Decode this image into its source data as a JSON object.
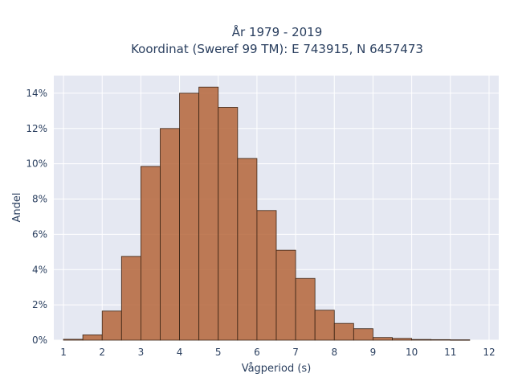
{
  "chart_data": {
    "type": "bar",
    "title_lines": [
      "År 1979 - 2019",
      "Koordinat (Sweref 99 TM): E 743915, N 6457473"
    ],
    "xlabel": "Vågperiod (s)",
    "ylabel": "Andel",
    "bin_width": 0.5,
    "x": [
      1.0,
      1.5,
      2.0,
      2.5,
      3.0,
      3.5,
      4.0,
      4.5,
      5.0,
      5.5,
      6.0,
      6.5,
      7.0,
      7.5,
      8.0,
      8.5,
      9.0,
      9.5,
      10.0,
      10.5,
      11.0
    ],
    "values": [
      0.05,
      0.3,
      1.65,
      4.75,
      9.85,
      12.0,
      14.0,
      14.35,
      13.2,
      10.3,
      7.35,
      5.1,
      3.5,
      1.7,
      0.95,
      0.65,
      0.15,
      0.1,
      0.04,
      0.03,
      0.02
    ],
    "value_unit": "%",
    "xlim": [
      0.75,
      12.25
    ],
    "ylim": [
      0,
      15
    ],
    "xticks": [
      1,
      2,
      3,
      4,
      5,
      6,
      7,
      8,
      9,
      10,
      11,
      12
    ],
    "xtick_labels": [
      "1",
      "2",
      "3",
      "4",
      "5",
      "6",
      "7",
      "8",
      "9",
      "10",
      "11",
      "12"
    ],
    "yticks": [
      0,
      2,
      4,
      6,
      8,
      10,
      12,
      14
    ],
    "ytick_labels": [
      "0%",
      "2%",
      "4%",
      "6%",
      "8%",
      "10%",
      "12%",
      "14%"
    ],
    "grid": true,
    "bar_color": "#b5653a",
    "bar_edge_color": "#3b2415",
    "plot_background": "#e5e8f2"
  }
}
